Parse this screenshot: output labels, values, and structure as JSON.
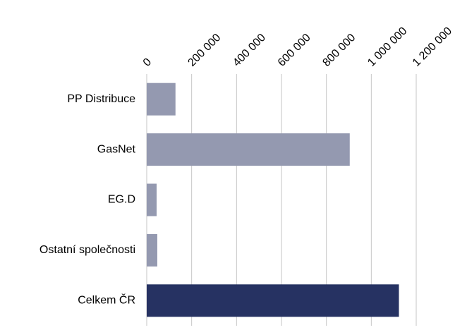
{
  "chart_data": {
    "type": "bar",
    "orientation": "horizontal",
    "categories": [
      "PP Distribuce",
      "GasNet",
      "EG.D",
      "Ostatní společnosti",
      "Celkem ČR"
    ],
    "values": [
      128000,
      904000,
      44000,
      47000,
      1123000
    ],
    "colors": [
      "#9499b0",
      "#9499b0",
      "#9499b0",
      "#9499b0",
      "#263262"
    ],
    "xlim": [
      0,
      1200000
    ],
    "xticks": [
      0,
      {
        "value": 200000,
        "label": "200 000"
      },
      {
        "value": 400000,
        "label": "400 000"
      },
      {
        "value": 600000,
        "label": "600 000"
      },
      {
        "value": 800000,
        "label": "800 000"
      },
      {
        "value": 1000000,
        "label": "1 000 000"
      },
      {
        "value": 1200000,
        "label": "1 200 000"
      }
    ],
    "grid": true
  }
}
